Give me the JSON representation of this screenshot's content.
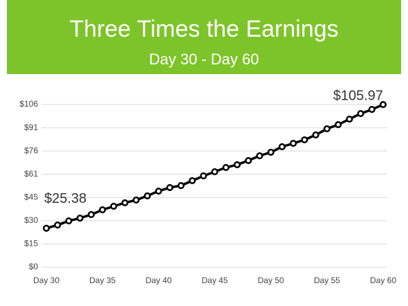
{
  "chart_data": {
    "type": "line",
    "title": "Three Times the Earnings",
    "subtitle": "Day 30 - Day 60",
    "header_color": "#7dc42a",
    "color": "#000000",
    "grid": true,
    "x": [
      30,
      31,
      32,
      33,
      34,
      35,
      36,
      37,
      38,
      39,
      40,
      41,
      42,
      43,
      44,
      45,
      46,
      47,
      48,
      49,
      50,
      51,
      52,
      53,
      54,
      55,
      56,
      57,
      58,
      59,
      60
    ],
    "values": [
      25.38,
      27.5,
      30.2,
      32,
      34.3,
      37.4,
      39.7,
      42,
      43.8,
      46.5,
      49.6,
      51.9,
      53.2,
      56.4,
      59.5,
      62.2,
      65,
      66.8,
      69.5,
      72.6,
      74.9,
      78.5,
      80.7,
      83,
      86.2,
      90.2,
      92.9,
      96.5,
      100.1,
      102.8,
      105.97
    ],
    "value_labels": [
      "$25.38",
      null,
      null,
      null,
      null,
      null,
      null,
      null,
      null,
      null,
      null,
      null,
      null,
      null,
      null,
      null,
      null,
      null,
      null,
      null,
      null,
      null,
      null,
      null,
      null,
      null,
      null,
      null,
      null,
      null,
      "$105.97"
    ],
    "xlim": [
      30,
      60
    ],
    "xticks": [
      {
        "value": 30,
        "label": "Day 30"
      },
      {
        "value": 35,
        "label": "Day 35"
      },
      {
        "value": 40,
        "label": "Day 40"
      },
      {
        "value": 45,
        "label": "Day 45"
      },
      {
        "value": 50,
        "label": "Day 50"
      },
      {
        "value": 55,
        "label": "Day 55"
      },
      {
        "value": 60,
        "label": "Day 60"
      }
    ],
    "ylim": [
      0,
      106
    ],
    "yticks": [
      {
        "value": 0,
        "label": "$0"
      },
      {
        "value": 15.14,
        "label": "$15"
      },
      {
        "value": 30.28,
        "label": "$30"
      },
      {
        "value": 45.42,
        "label": "$45"
      },
      {
        "value": 60.56,
        "label": "$61"
      },
      {
        "value": 75.7,
        "label": "$76"
      },
      {
        "value": 90.84,
        "label": "$91"
      },
      {
        "value": 106,
        "label": "$106"
      }
    ]
  }
}
